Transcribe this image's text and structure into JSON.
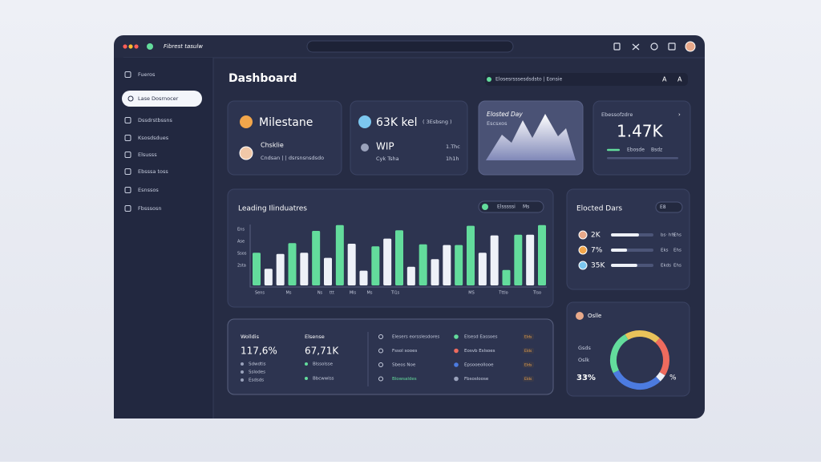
{
  "window": {
    "app_name": "Fibrest tasulw"
  },
  "sidebar": {
    "items": [
      "Fueros",
      "Lase Dosrnocer",
      "Dssdrstbssns",
      "Ksosdsdues",
      "Elsusss",
      "Ebsssa toss",
      "Esnssos",
      "Fbsssosn"
    ],
    "active": 1
  },
  "header": {
    "title": "Dashboard",
    "search": "Elosesrsssesdsdsto | Eonsie"
  },
  "cards": [
    {
      "title": "Milestane",
      "person": "Chsklie",
      "detail": "Cndsan | | dsrsnsnsdsdo"
    },
    {
      "title": "63K kel",
      "badge": "( 3Esbsng )",
      "status": "WIP",
      "detail": "Cyk Tsha",
      "right_top": "1.Thc",
      "right_bottom": "1h1h"
    },
    {
      "title": "Elosted Day",
      "subtitle": "Escsxos"
    },
    {
      "title": "Ebessofzdre",
      "value": "1.47K",
      "legend_a": "Ebosde",
      "legend_b": "Bsdz",
      "progress": 18
    }
  ],
  "bar_chart": {
    "title": "Leading Ilinduatres",
    "toggle": "Elsssssi",
    "toggle_icon": "Ms",
    "y_labels": [
      "Ens",
      "Ase",
      "Ssos",
      "2sta"
    ],
    "x_labels": [
      "Sens",
      "Ms",
      "Ns",
      "ttt",
      "Mls",
      "Ms",
      "Tl1s",
      "MS",
      "Tttlo",
      "Tlso"
    ],
    "bars": [
      {
        "value": 51,
        "color": "#63dc9c"
      },
      {
        "value": 26,
        "color": "#eef1f8"
      },
      {
        "value": 49,
        "color": "#eef1f8"
      },
      {
        "value": 66,
        "color": "#63dc9c"
      },
      {
        "value": 51,
        "color": "#eef1f8"
      },
      {
        "value": 85,
        "color": "#63dc9c"
      },
      {
        "value": 43,
        "color": "#eef1f8"
      },
      {
        "value": 94,
        "color": "#63dc9c"
      },
      {
        "value": 65,
        "color": "#eef1f8"
      },
      {
        "value": 23,
        "color": "#eef1f8"
      },
      {
        "value": 61,
        "color": "#63dc9c"
      },
      {
        "value": 73,
        "color": "#eef1f8"
      },
      {
        "value": 86,
        "color": "#63dc9c"
      },
      {
        "value": 29,
        "color": "#eef1f8"
      },
      {
        "value": 64,
        "color": "#63dc9c"
      },
      {
        "value": 41,
        "color": "#eef1f8"
      },
      {
        "value": 63,
        "color": "#eef1f8"
      },
      {
        "value": 63,
        "color": "#63dc9c"
      },
      {
        "value": 93,
        "color": "#63dc9c"
      },
      {
        "value": 51,
        "color": "#eef1f8"
      },
      {
        "value": 78,
        "color": "#eef1f8"
      },
      {
        "value": 24,
        "color": "#63dc9c"
      },
      {
        "value": 79,
        "color": "#63dc9c"
      },
      {
        "value": 79,
        "color": "#eef1f8"
      },
      {
        "value": 94,
        "color": "#63dc9c"
      }
    ]
  },
  "elected": {
    "title": "Elocted Dars",
    "toggle": "E8",
    "rows": [
      {
        "label": "2K",
        "progress": 66,
        "note": "bs· hfs",
        "tag": "Ehs"
      },
      {
        "label": "7%",
        "progress": 38,
        "note": "Eks",
        "tag": "Ehs"
      },
      {
        "label": "35K",
        "progress": 62,
        "note": "Ekds",
        "tag": "Ehs"
      }
    ]
  },
  "summary": {
    "col1": {
      "title": "Wolldis",
      "value": "117,6%",
      "items": [
        "Sdwdtis",
        "Sslodes",
        "Esdsds"
      ]
    },
    "col2": {
      "title": "Elsense",
      "value": "67,71K",
      "items": [
        "Blssolsse",
        "Bbcwwlss"
      ]
    },
    "col3": [
      "Elesers eorsslesdores",
      "Fssol sooes",
      "Sbeos Noe",
      "Blowsaldes"
    ],
    "col4": [
      "Elsesd Eassoes",
      "Eosvb Eslsoes",
      "Epsooeollooe",
      "Fbsosloose"
    ],
    "col5": [
      "Elds",
      "Elds",
      "Elds",
      "Elds"
    ]
  },
  "donut": {
    "title": "Oslle",
    "labels": [
      "Gsds",
      "Oslk"
    ],
    "value": "33%",
    "suffix": "%",
    "segments": [
      {
        "value": 20,
        "color": "#e9c25a"
      },
      {
        "value": 22,
        "color": "#ee6b5e"
      },
      {
        "value": 4,
        "color": "#eef1f8"
      },
      {
        "value": 30,
        "color": "#4c7be0"
      },
      {
        "value": 24,
        "color": "#63dc9c"
      }
    ]
  }
}
